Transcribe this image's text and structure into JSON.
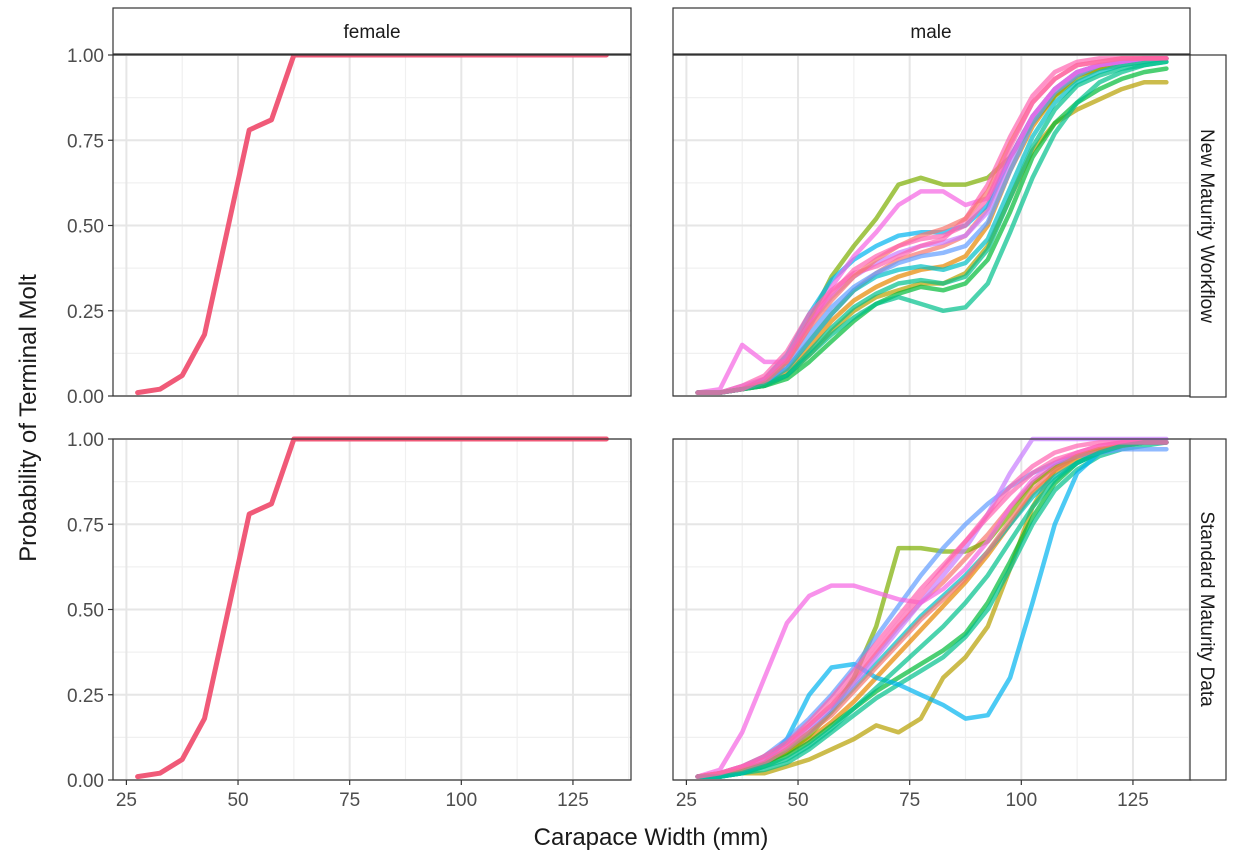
{
  "figure": {
    "x_title": "Carapace Width (mm)",
    "y_title": "Probability of Terminal Molt",
    "col_strips": [
      "female",
      "male"
    ],
    "row_strips": [
      "New Maturity Workflow",
      "Standard Maturity Data"
    ]
  },
  "chart_data": {
    "type": "line",
    "facets": {
      "cols": [
        "female",
        "male"
      ],
      "rows": [
        "New Maturity Workflow",
        "Standard Maturity Data"
      ]
    },
    "xlabel": "Carapace Width (mm)",
    "ylabel": "Probability of Terminal Molt",
    "xlim": [
      22,
      138
    ],
    "ylim": [
      0,
      1
    ],
    "x_ticks": [
      25,
      50,
      75,
      100,
      125
    ],
    "x_tick_labels": [
      "25",
      "50",
      "75",
      "100",
      "125"
    ],
    "y_ticks": [
      0,
      0.25,
      0.5,
      0.75,
      1
    ],
    "y_tick_labels": [
      "0.00",
      "0.25",
      "0.50",
      "0.75",
      "1.00"
    ],
    "grid": true,
    "legend": "none",
    "x": [
      27.5,
      32.5,
      37.5,
      42.5,
      47.5,
      52.5,
      57.5,
      62.5,
      67.5,
      72.5,
      77.5,
      82.5,
      87.5,
      92.5,
      97.5,
      102.5,
      107.5,
      112.5,
      117.5,
      122.5,
      127.5,
      132.5
    ],
    "panels": [
      {
        "col": "female",
        "row": "New Maturity Workflow",
        "series": [
          {
            "color": "#f05a78",
            "values": [
              0.01,
              0.02,
              0.06,
              0.18,
              0.48,
              0.78,
              0.81,
              1.0,
              1.0,
              1.0,
              1.0,
              1.0,
              1.0,
              1.0,
              1.0,
              1.0,
              1.0,
              1.0,
              1.0,
              1.0,
              1.0,
              1.0
            ]
          }
        ]
      },
      {
        "col": "male",
        "row": "New Maturity Workflow",
        "series": [
          {
            "color": "#f8766d",
            "values": [
              0.01,
              0.01,
              0.02,
              0.04,
              0.08,
              0.16,
              0.24,
              0.31,
              0.36,
              0.4,
              0.42,
              0.44,
              0.47,
              0.55,
              0.7,
              0.82,
              0.9,
              0.95,
              0.97,
              0.98,
              0.99,
              0.99
            ]
          },
          {
            "color": "#e58700",
            "values": [
              0.01,
              0.01,
              0.02,
              0.03,
              0.07,
              0.14,
              0.22,
              0.28,
              0.32,
              0.35,
              0.37,
              0.38,
              0.41,
              0.5,
              0.66,
              0.79,
              0.88,
              0.94,
              0.96,
              0.98,
              0.99,
              0.99
            ]
          },
          {
            "color": "#b79f00",
            "values": [
              0.01,
              0.01,
              0.02,
              0.03,
              0.06,
              0.12,
              0.19,
              0.25,
              0.29,
              0.31,
              0.33,
              0.33,
              0.36,
              0.44,
              0.58,
              0.72,
              0.8,
              0.84,
              0.87,
              0.9,
              0.92,
              0.92
            ]
          },
          {
            "color": "#7cae00",
            "values": [
              0.01,
              0.01,
              0.02,
              0.04,
              0.1,
              0.22,
              0.35,
              0.44,
              0.52,
              0.62,
              0.64,
              0.62,
              0.62,
              0.64,
              0.7,
              0.8,
              0.88,
              0.93,
              0.96,
              0.97,
              0.98,
              0.99
            ]
          },
          {
            "color": "#00ba38",
            "values": [
              0.01,
              0.01,
              0.02,
              0.03,
              0.05,
              0.1,
              0.16,
              0.22,
              0.27,
              0.3,
              0.32,
              0.31,
              0.33,
              0.4,
              0.54,
              0.7,
              0.8,
              0.86,
              0.9,
              0.93,
              0.95,
              0.96
            ]
          },
          {
            "color": "#00c08b",
            "values": [
              0.01,
              0.01,
              0.02,
              0.04,
              0.06,
              0.12,
              0.18,
              0.23,
              0.27,
              0.29,
              0.27,
              0.25,
              0.26,
              0.33,
              0.48,
              0.64,
              0.77,
              0.86,
              0.92,
              0.95,
              0.97,
              0.98
            ]
          },
          {
            "color": "#00bfc4",
            "values": [
              0.01,
              0.01,
              0.02,
              0.04,
              0.08,
              0.16,
              0.24,
              0.31,
              0.35,
              0.37,
              0.38,
              0.37,
              0.39,
              0.46,
              0.61,
              0.76,
              0.86,
              0.92,
              0.95,
              0.97,
              0.98,
              0.99
            ]
          },
          {
            "color": "#00b4f0",
            "values": [
              0.01,
              0.01,
              0.02,
              0.05,
              0.12,
              0.24,
              0.34,
              0.4,
              0.44,
              0.47,
              0.48,
              0.48,
              0.5,
              0.56,
              0.7,
              0.82,
              0.9,
              0.95,
              0.97,
              0.98,
              0.99,
              0.99
            ]
          },
          {
            "color": "#619cff",
            "values": [
              0.01,
              0.01,
              0.02,
              0.04,
              0.09,
              0.18,
              0.26,
              0.32,
              0.36,
              0.39,
              0.41,
              0.42,
              0.44,
              0.51,
              0.66,
              0.8,
              0.89,
              0.94,
              0.97,
              0.98,
              0.99,
              0.99
            ]
          },
          {
            "color": "#c77cff",
            "values": [
              0.01,
              0.01,
              0.03,
              0.05,
              0.11,
              0.21,
              0.29,
              0.35,
              0.39,
              0.42,
              0.44,
              0.45,
              0.47,
              0.54,
              0.69,
              0.82,
              0.9,
              0.95,
              0.97,
              0.98,
              0.99,
              0.99
            ]
          },
          {
            "color": "#f564e3",
            "values": [
              0.01,
              0.02,
              0.15,
              0.1,
              0.1,
              0.2,
              0.32,
              0.41,
              0.48,
              0.56,
              0.6,
              0.6,
              0.56,
              0.58,
              0.7,
              0.82,
              0.9,
              0.95,
              0.97,
              0.98,
              0.99,
              0.99
            ]
          },
          {
            "color": "#ff64b0",
            "values": [
              0.01,
              0.01,
              0.03,
              0.06,
              0.13,
              0.24,
              0.31,
              0.36,
              0.38,
              0.41,
              0.44,
              0.46,
              0.52,
              0.62,
              0.76,
              0.88,
              0.95,
              0.98,
              0.99,
              0.99,
              0.99,
              0.99
            ]
          },
          {
            "color": "#f8766d",
            "values": [
              0.01,
              0.01,
              0.02,
              0.04,
              0.1,
              0.2,
              0.28,
              0.35,
              0.4,
              0.44,
              0.47,
              0.49,
              0.52,
              0.6,
              0.74,
              0.86,
              0.93,
              0.97,
              0.98,
              0.99,
              0.99,
              0.99
            ]
          },
          {
            "color": "#00c08b",
            "values": [
              0.01,
              0.01,
              0.02,
              0.03,
              0.06,
              0.13,
              0.2,
              0.26,
              0.3,
              0.33,
              0.34,
              0.33,
              0.35,
              0.43,
              0.58,
              0.73,
              0.84,
              0.91,
              0.94,
              0.96,
              0.97,
              0.98
            ]
          },
          {
            "color": "#ff64b0",
            "values": [
              0.01,
              0.01,
              0.02,
              0.05,
              0.11,
              0.22,
              0.3,
              0.37,
              0.41,
              0.44,
              0.46,
              0.47,
              0.5,
              0.58,
              0.73,
              0.86,
              0.93,
              0.97,
              0.98,
              0.99,
              0.99,
              0.99
            ]
          }
        ]
      },
      {
        "col": "female",
        "row": "Standard Maturity Data",
        "series": [
          {
            "color": "#f05a78",
            "values": [
              0.01,
              0.02,
              0.06,
              0.18,
              0.48,
              0.78,
              0.81,
              1.0,
              1.0,
              1.0,
              1.0,
              1.0,
              1.0,
              1.0,
              1.0,
              1.0,
              1.0,
              1.0,
              1.0,
              1.0,
              1.0,
              1.0
            ]
          }
        ]
      },
      {
        "col": "male",
        "row": "Standard Maturity Data",
        "series": [
          {
            "color": "#f8766d",
            "values": [
              0.01,
              0.02,
              0.04,
              0.07,
              0.11,
              0.16,
              0.22,
              0.29,
              0.37,
              0.45,
              0.52,
              0.58,
              0.65,
              0.72,
              0.8,
              0.87,
              0.92,
              0.95,
              0.97,
              0.98,
              0.99,
              0.99
            ]
          },
          {
            "color": "#e58700",
            "values": [
              0.01,
              0.01,
              0.03,
              0.05,
              0.08,
              0.12,
              0.17,
              0.23,
              0.3,
              0.37,
              0.44,
              0.51,
              0.58,
              0.66,
              0.75,
              0.84,
              0.9,
              0.94,
              0.96,
              0.98,
              0.99,
              0.99
            ]
          },
          {
            "color": "#b79f00",
            "values": [
              0.01,
              0.01,
              0.02,
              0.02,
              0.04,
              0.06,
              0.09,
              0.12,
              0.16,
              0.14,
              0.18,
              0.3,
              0.36,
              0.45,
              0.62,
              0.8,
              0.91,
              0.95,
              0.97,
              0.98,
              0.99,
              0.99
            ]
          },
          {
            "color": "#7cae00",
            "values": [
              0.01,
              0.01,
              0.03,
              0.05,
              0.08,
              0.13,
              0.2,
              0.3,
              0.45,
              0.68,
              0.68,
              0.67,
              0.67,
              0.7,
              0.78,
              0.87,
              0.92,
              0.95,
              0.97,
              0.98,
              0.99,
              0.99
            ]
          },
          {
            "color": "#00ba38",
            "values": [
              0.01,
              0.01,
              0.02,
              0.04,
              0.07,
              0.11,
              0.16,
              0.21,
              0.26,
              0.3,
              0.34,
              0.38,
              0.43,
              0.52,
              0.64,
              0.77,
              0.87,
              0.93,
              0.96,
              0.98,
              0.99,
              0.99
            ]
          },
          {
            "color": "#00c08b",
            "values": [
              0.01,
              0.01,
              0.02,
              0.03,
              0.05,
              0.09,
              0.14,
              0.19,
              0.24,
              0.28,
              0.32,
              0.36,
              0.42,
              0.5,
              0.62,
              0.75,
              0.85,
              0.91,
              0.95,
              0.97,
              0.98,
              0.99
            ]
          },
          {
            "color": "#00bfc4",
            "values": [
              0.01,
              0.02,
              0.03,
              0.05,
              0.09,
              0.14,
              0.2,
              0.27,
              0.34,
              0.41,
              0.48,
              0.54,
              0.6,
              0.67,
              0.75,
              0.83,
              0.89,
              0.93,
              0.96,
              0.98,
              0.99,
              0.99
            ]
          },
          {
            "color": "#00b4f0",
            "values": [
              0.01,
              0.01,
              0.02,
              0.05,
              0.12,
              0.25,
              0.33,
              0.34,
              0.3,
              0.28,
              0.25,
              0.22,
              0.18,
              0.19,
              0.3,
              0.52,
              0.75,
              0.9,
              0.96,
              0.98,
              0.99,
              0.99
            ]
          },
          {
            "color": "#619cff",
            "values": [
              0.01,
              0.02,
              0.04,
              0.07,
              0.12,
              0.18,
              0.25,
              0.33,
              0.42,
              0.51,
              0.6,
              0.68,
              0.75,
              0.81,
              0.86,
              0.9,
              0.93,
              0.95,
              0.96,
              0.97,
              0.97,
              0.97
            ]
          },
          {
            "color": "#c77cff",
            "values": [
              0.01,
              0.02,
              0.04,
              0.06,
              0.1,
              0.15,
              0.21,
              0.28,
              0.36,
              0.44,
              0.52,
              0.6,
              0.68,
              0.78,
              0.9,
              1.0,
              1.0,
              1.0,
              1.0,
              1.0,
              1.0,
              1.0
            ]
          },
          {
            "color": "#f564e3",
            "values": [
              0.01,
              0.03,
              0.14,
              0.3,
              0.46,
              0.54,
              0.57,
              0.57,
              0.55,
              0.53,
              0.52,
              0.56,
              0.62,
              0.7,
              0.8,
              0.88,
              0.93,
              0.96,
              0.98,
              0.99,
              0.99,
              0.99
            ]
          },
          {
            "color": "#ff64b0",
            "values": [
              0.01,
              0.02,
              0.04,
              0.07,
              0.11,
              0.17,
              0.24,
              0.32,
              0.4,
              0.48,
              0.56,
              0.63,
              0.7,
              0.77,
              0.84,
              0.9,
              0.94,
              0.96,
              0.98,
              0.99,
              0.99,
              0.99
            ]
          },
          {
            "color": "#f8766d",
            "values": [
              0.01,
              0.02,
              0.03,
              0.05,
              0.09,
              0.14,
              0.19,
              0.26,
              0.33,
              0.4,
              0.47,
              0.53,
              0.59,
              0.67,
              0.76,
              0.85,
              0.91,
              0.95,
              0.97,
              0.98,
              0.99,
              0.99
            ]
          },
          {
            "color": "#00c08b",
            "values": [
              0.01,
              0.01,
              0.02,
              0.04,
              0.06,
              0.1,
              0.15,
              0.21,
              0.27,
              0.33,
              0.39,
              0.45,
              0.52,
              0.6,
              0.7,
              0.8,
              0.88,
              0.93,
              0.96,
              0.98,
              0.99,
              0.99
            ]
          },
          {
            "color": "#ff64b0",
            "values": [
              0.01,
              0.02,
              0.04,
              0.06,
              0.1,
              0.16,
              0.22,
              0.3,
              0.38,
              0.46,
              0.54,
              0.62,
              0.7,
              0.78,
              0.86,
              0.92,
              0.96,
              0.98,
              0.99,
              0.99,
              0.99,
              0.99
            ]
          }
        ]
      }
    ]
  }
}
